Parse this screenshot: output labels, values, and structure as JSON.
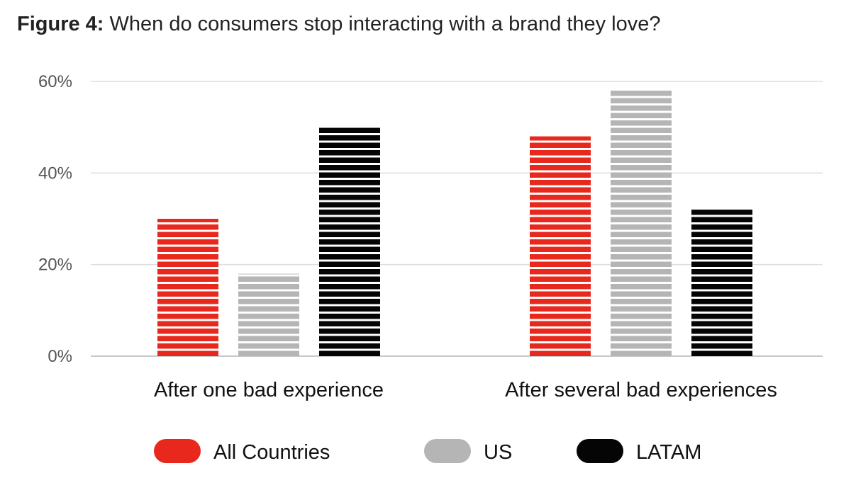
{
  "title": {
    "prefix": "Figure 4:",
    "text": "When do consumers stop interacting with a brand they love?"
  },
  "colors": {
    "All Countries": "#e8281d",
    "US": "#b5b5b5",
    "LATAM": "#050505",
    "grid": "#dddddd",
    "axis": "#c8c8c8"
  },
  "chart_data": {
    "type": "bar",
    "categories": [
      "After one bad experience",
      "After several bad experiences"
    ],
    "series": [
      {
        "name": "All Countries",
        "values": [
          30,
          48
        ]
      },
      {
        "name": "US",
        "values": [
          18,
          58
        ]
      },
      {
        "name": "LATAM",
        "values": [
          50,
          32
        ]
      }
    ],
    "yticks": [
      "0%",
      "20%",
      "40%",
      "60%"
    ],
    "ylim": [
      0,
      60
    ],
    "yunit": "%",
    "grid": true,
    "legend": "bottom-center",
    "bar_style": "horizontal-stripes"
  }
}
